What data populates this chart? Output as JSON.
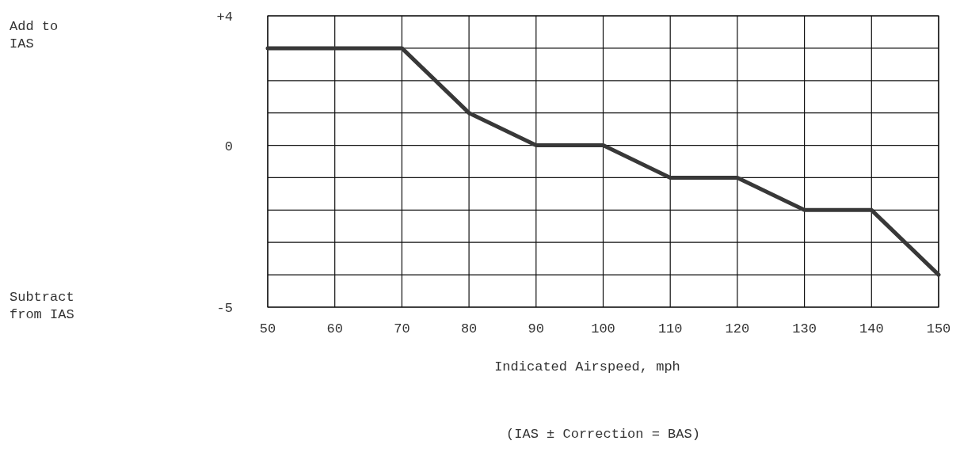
{
  "chart_data": {
    "type": "line",
    "xlabel": "Indicated Airspeed, mph",
    "x": [
      50,
      70,
      80,
      90,
      100,
      110,
      120,
      130,
      140,
      150
    ],
    "series": [
      {
        "color": "#383838",
        "values": [
          3,
          3,
          1,
          0,
          0,
          -1,
          -1,
          -2,
          -2,
          -4
        ]
      }
    ],
    "xlim": [
      50,
      150
    ],
    "xticks": [
      50,
      60,
      70,
      80,
      90,
      100,
      110,
      120,
      130,
      140,
      150
    ],
    "ylim": [
      -5,
      4
    ],
    "yticks": [
      {
        "value": 4,
        "label": "+4"
      },
      {
        "value": 3,
        "label": null
      },
      {
        "value": 2,
        "label": null
      },
      {
        "value": 1,
        "label": null
      },
      0,
      {
        "value": -1,
        "label": null
      },
      {
        "value": -2,
        "label": null
      },
      {
        "value": -3,
        "label": null
      },
      {
        "value": -4,
        "label": null
      },
      -5
    ],
    "grid": true,
    "marker": "none",
    "line_style": "solid",
    "annotations": [
      "Add to\nIAS",
      "Subtract\nfrom IAS",
      "(IAS ± Correction = BAS)"
    ]
  }
}
